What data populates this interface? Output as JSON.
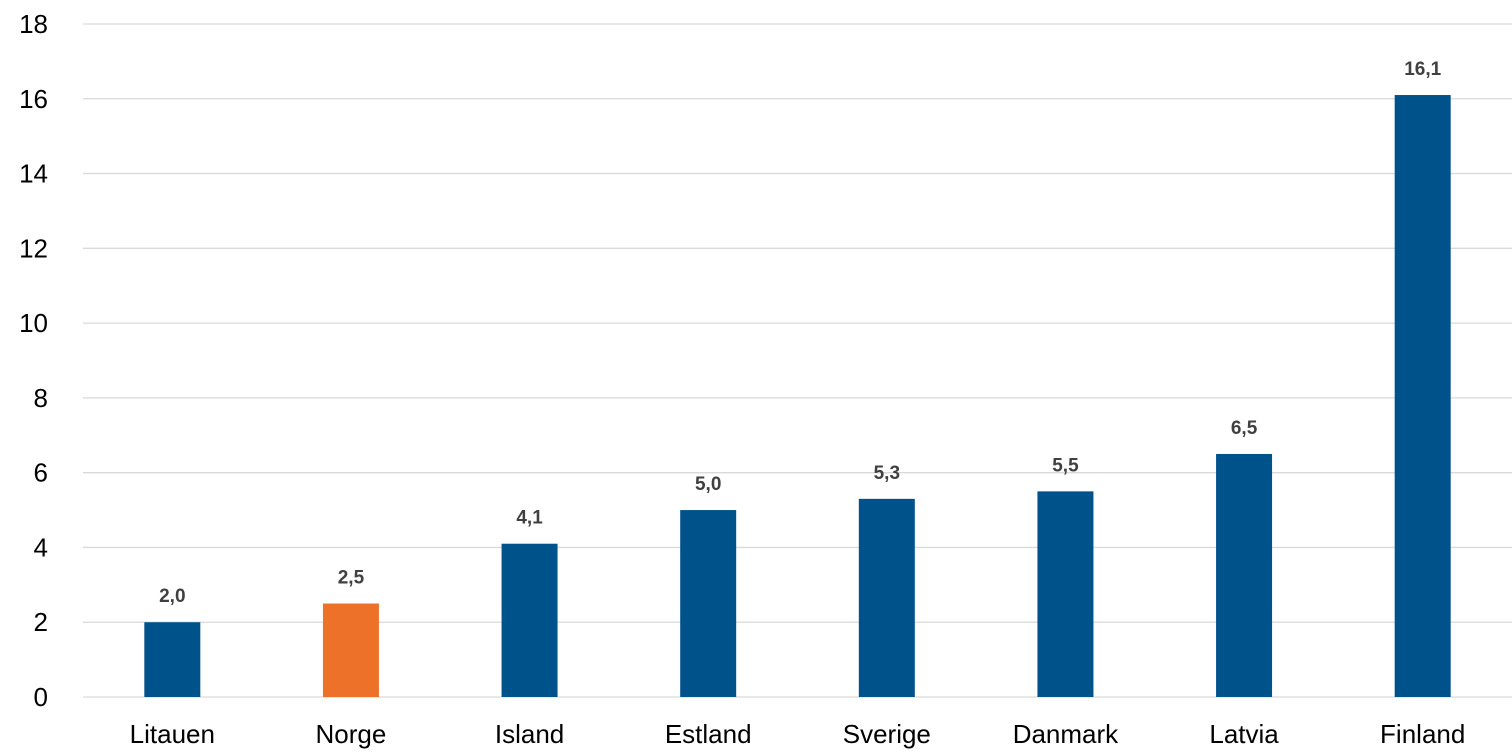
{
  "chart_data": {
    "type": "bar",
    "categories": [
      "Litauen",
      "Norge",
      "Island",
      "Estland",
      "Sverige",
      "Danmark",
      "Latvia",
      "Finland"
    ],
    "values": [
      2.0,
      2.5,
      4.1,
      5.0,
      5.3,
      5.5,
      6.5,
      16.1
    ],
    "value_labels": [
      "2,0",
      "2,5",
      "4,1",
      "5,0",
      "5,3",
      "5,5",
      "6,5",
      "16,1"
    ],
    "colors": [
      "#00538a",
      "#ed7128",
      "#00538a",
      "#00538a",
      "#00538a",
      "#00538a",
      "#00538a",
      "#00538a"
    ],
    "highlight_category": "Norge",
    "ylim": [
      0,
      18
    ],
    "yticks": [
      0,
      2,
      4,
      6,
      8,
      10,
      12,
      14,
      16,
      18
    ],
    "grid": true,
    "legend": "none",
    "title": "",
    "xlabel": "",
    "ylabel": ""
  }
}
